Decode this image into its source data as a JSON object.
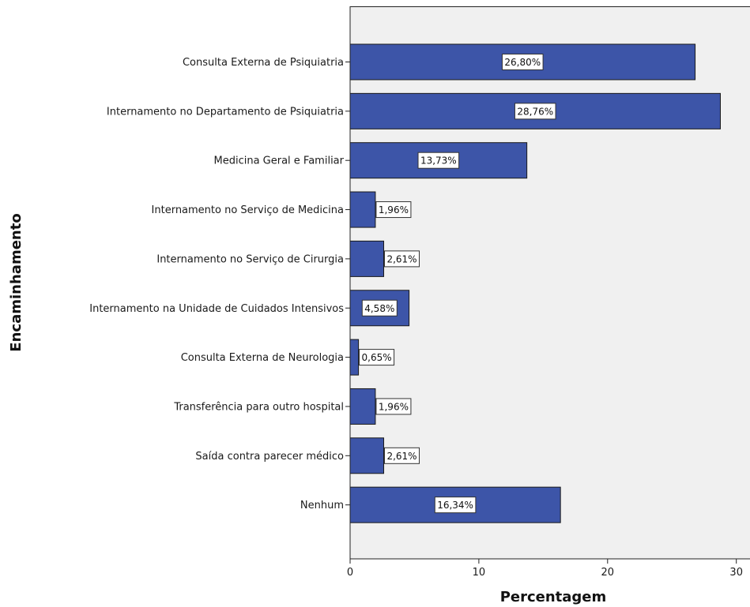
{
  "chart_data": {
    "type": "bar",
    "orientation": "horizontal",
    "categories": [
      "Consulta Externa de Psiquiatria",
      "Internamento no Departamento de Psiquiatria",
      "Medicina Geral e Familiar",
      "Internamento no Serviço de Medicina",
      "Internamento no Serviço de Cirurgia",
      "Internamento na Unidade de Cuidados Intensivos",
      "Consulta Externa de Neurologia",
      "Transferência para outro hospital",
      "Saída contra parecer médico",
      "Nenhum"
    ],
    "values": [
      26.8,
      28.76,
      13.73,
      1.96,
      2.61,
      4.58,
      0.65,
      1.96,
      2.61,
      16.34
    ],
    "data_labels": [
      "26,80%",
      "28,76%",
      "13,73%",
      "1,96%",
      "2,61%",
      "4,58%",
      "0,65%",
      "1,96%",
      "2,61%",
      "16,34%"
    ],
    "title": "",
    "xlabel": "Percentagem",
    "ylabel": "Encaminhamento",
    "xlim": [
      0,
      31
    ],
    "xticks": [
      0,
      10,
      20,
      30
    ],
    "xtick_labels": [
      "0",
      "10",
      "20",
      "30"
    ],
    "grid": false,
    "legend": "none",
    "colors": {
      "bar": "#3d55a8",
      "bar_edge": "#1a1a1a",
      "plot_background": "#f0f0f0",
      "page_background": "#ffffff"
    }
  }
}
